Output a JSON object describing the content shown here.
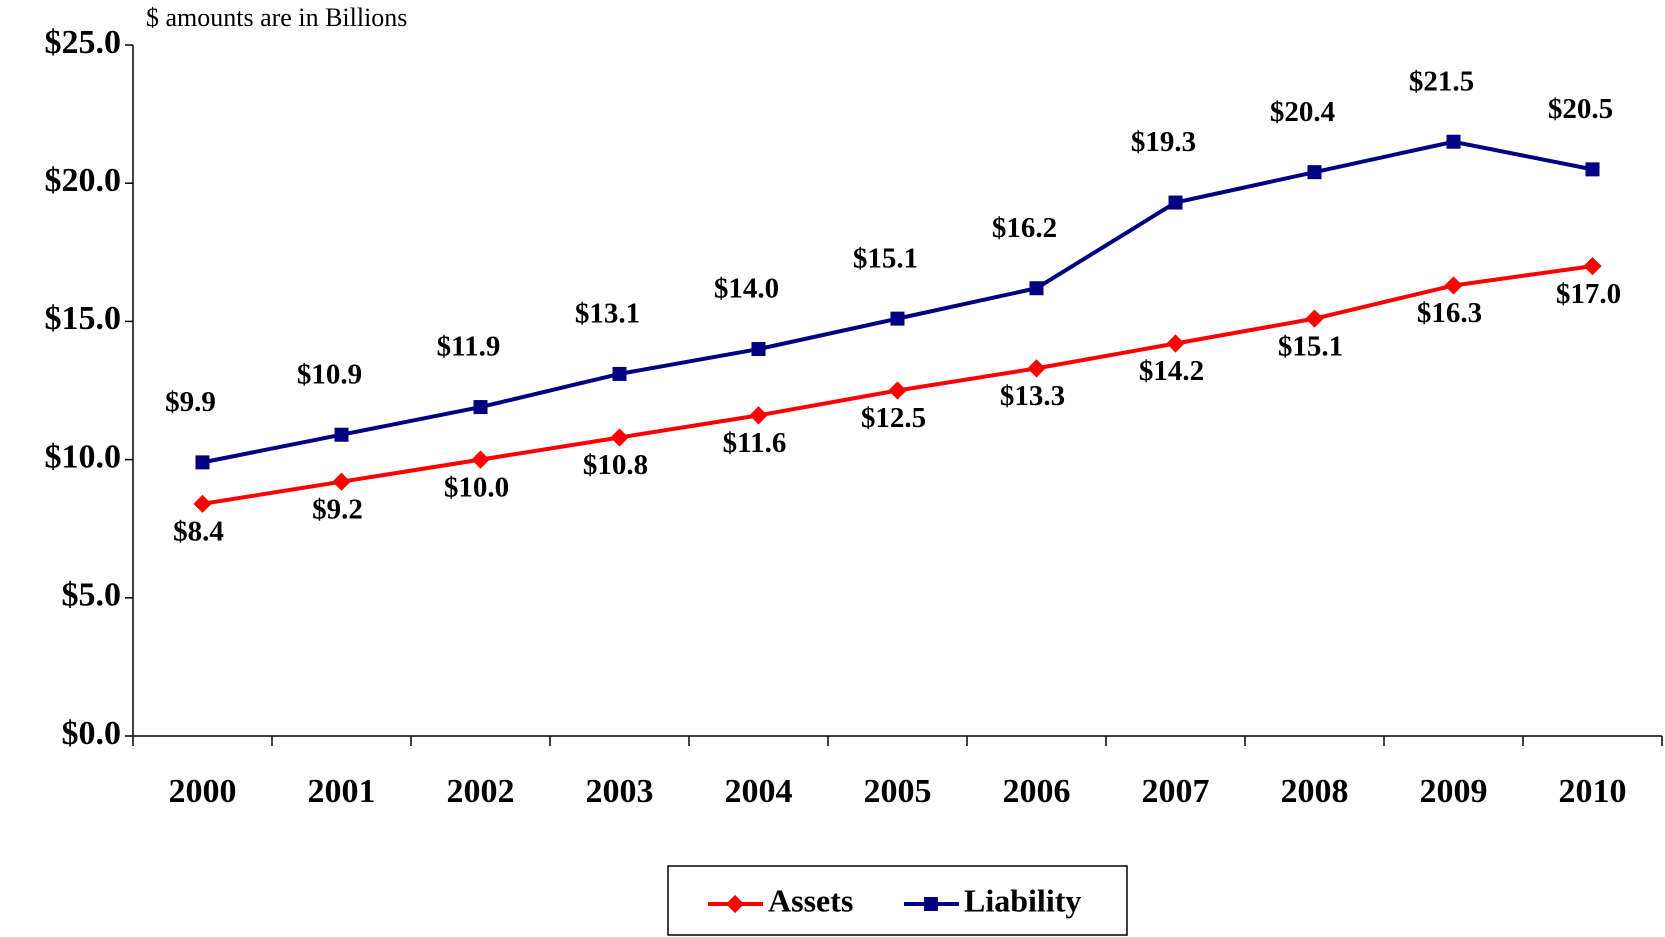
{
  "chart_data": {
    "type": "line",
    "subtitle": "$ amounts are in Billions",
    "categories": [
      "2000",
      "2001",
      "2002",
      "2003",
      "2004",
      "2005",
      "2006",
      "2007",
      "2008",
      "2009",
      "2010"
    ],
    "series": [
      {
        "name": "Assets",
        "color": "#ff0000",
        "marker": "diamond",
        "values": [
          8.4,
          9.2,
          10.0,
          10.8,
          11.6,
          12.5,
          13.3,
          14.2,
          15.1,
          16.3,
          17.0
        ],
        "value_labels": [
          "$8.4",
          "$9.2",
          "$10.0",
          "$10.8",
          "$11.6",
          "$12.5",
          "$13.3",
          "$14.2",
          "$15.1",
          "$16.3",
          "$17.0"
        ]
      },
      {
        "name": "Liability",
        "color": "#000080",
        "marker": "square",
        "values": [
          9.9,
          10.9,
          11.9,
          13.1,
          14.0,
          15.1,
          16.2,
          19.3,
          20.4,
          21.5,
          20.5
        ],
        "value_labels": [
          "$9.9",
          "$10.9",
          "$11.9",
          "$13.1",
          "$14.0",
          "$15.1",
          "$16.2",
          "$19.3",
          "$20.4",
          "$21.5",
          "$20.5"
        ]
      }
    ],
    "ylim": [
      0,
      25
    ],
    "yticks": [
      {
        "value": 0,
        "label": "$0.0"
      },
      {
        "value": 5,
        "label": "$5.0"
      },
      {
        "value": 10,
        "label": "$10.0"
      },
      {
        "value": 15,
        "label": "$15.0"
      },
      {
        "value": 20,
        "label": "$20.0"
      },
      {
        "value": 25,
        "label": "$25.0"
      }
    ],
    "grid": false,
    "legend": "bottom"
  }
}
